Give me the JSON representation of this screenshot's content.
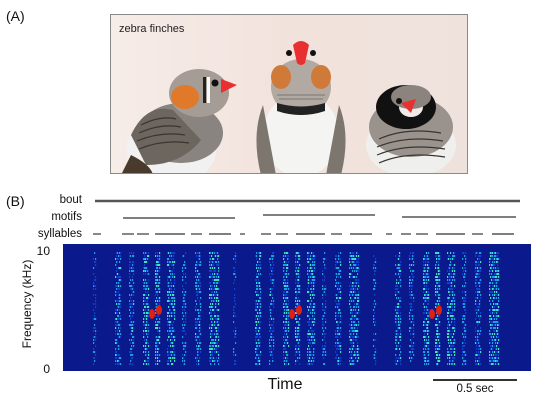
{
  "panels": {
    "a_label": "(A)",
    "b_label": "(B)"
  },
  "photo": {
    "caption": "zebra finches"
  },
  "tracks": {
    "bout_label": "bout",
    "motifs_label": "motifs",
    "syllables_label": "syllables"
  },
  "spectrogram": {
    "y_axis_label": "Frequency (kHz)",
    "y_tick_top": "10",
    "y_tick_bottom": "0",
    "x_axis_label": "Time",
    "scale_bar_label": "0.5 sec",
    "colormap": [
      "#0a1a8c",
      "#1040d0",
      "#18a0e0",
      "#40e0c0",
      "#e8f020",
      "#e02010"
    ]
  }
}
